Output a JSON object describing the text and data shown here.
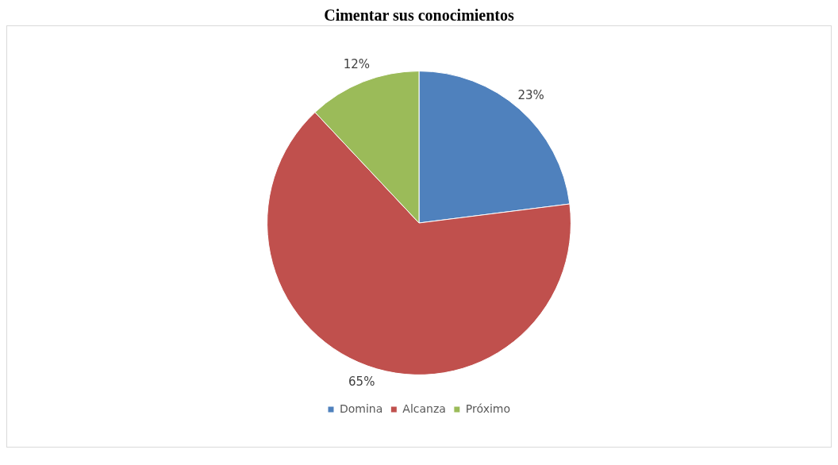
{
  "chart_data": {
    "type": "pie",
    "title": "Cimentar sus conocimientos",
    "categories": [
      "Domina",
      "Alcanza",
      "Próximo"
    ],
    "values": [
      23,
      65,
      12
    ],
    "colors": [
      "#4f81bd",
      "#c0504d",
      "#9bbb59"
    ],
    "value_labels": [
      "23%",
      "65%",
      "12%"
    ],
    "legend": "bottom"
  }
}
